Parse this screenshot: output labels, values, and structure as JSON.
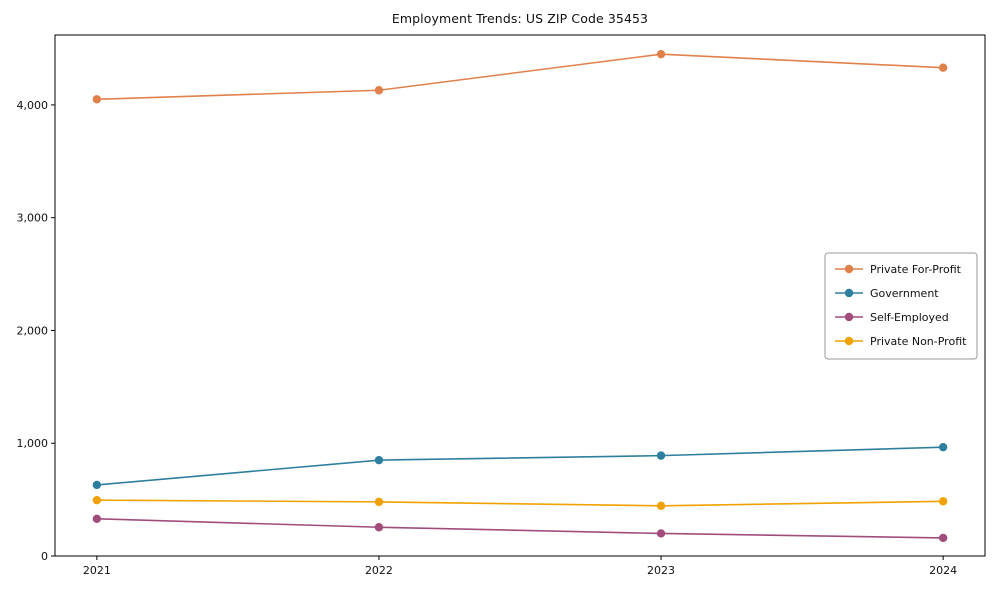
{
  "chart": {
    "title": "Employment Trends: US ZIP Code 35453"
  },
  "chart_data": {
    "type": "line",
    "title": "Employment Trends: US ZIP Code 35453",
    "xlabel": "",
    "ylabel": "",
    "x": [
      "2021",
      "2022",
      "2023",
      "2024"
    ],
    "series": [
      {
        "name": "Private For-Profit",
        "color": "#e0804a",
        "values": [
          4050,
          4130,
          4450,
          4330
        ]
      },
      {
        "name": "Government",
        "color": "#2e7f9e",
        "values": [
          630,
          850,
          890,
          965
        ]
      },
      {
        "name": "Self-Employed",
        "color": "#a04d7c",
        "values": [
          330,
          255,
          200,
          160
        ]
      },
      {
        "name": "Private Non-Profit",
        "color": "#f0a202",
        "values": [
          495,
          480,
          445,
          485
        ]
      }
    ],
    "ylim": [
      0,
      4620
    ],
    "yticks": [
      0,
      1000,
      2000,
      3000,
      4000
    ],
    "ytick_labels": [
      "0",
      "1,000",
      "2,000",
      "3,000",
      "4,000"
    ],
    "legend_position": "center-right",
    "grid": false,
    "marker": "circle"
  }
}
